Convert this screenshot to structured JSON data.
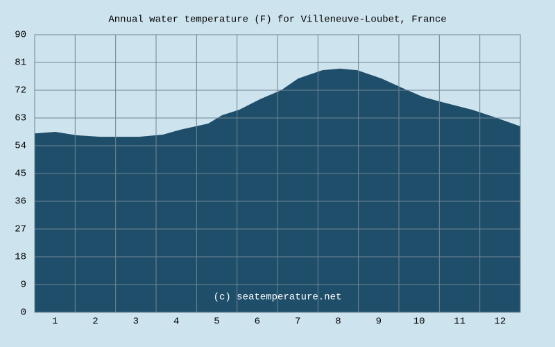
{
  "chart_data": {
    "type": "area",
    "title": "Annual water temperature (F) for Villeneuve-Loubet, France",
    "annotation": "(c) seatemperature.net",
    "x": [
      0.5,
      1.01,
      1.53,
      2.13,
      3.07,
      3.67,
      4.1,
      4.79,
      5.13,
      5.56,
      6.07,
      6.59,
      7.01,
      7.61,
      8.04,
      8.47,
      9.07,
      9.59,
      10.1,
      10.61,
      11.3,
      11.81,
      12.5
    ],
    "values": [
      58.0,
      58.5,
      57.4,
      56.9,
      56.9,
      57.6,
      59.2,
      61.2,
      63.9,
      65.7,
      69.1,
      72.0,
      75.8,
      78.5,
      79.0,
      78.5,
      75.8,
      72.7,
      69.8,
      68.0,
      65.7,
      63.5,
      60.3
    ],
    "color": "#1f4e6a",
    "xlim": [
      0.5,
      12.5
    ],
    "xticks": [
      1,
      2,
      3,
      4,
      5,
      6,
      7,
      8,
      9,
      10,
      11,
      12
    ],
    "ylim": [
      0,
      90
    ],
    "yticks": [
      0,
      9,
      18,
      27,
      36,
      45,
      54,
      63,
      72,
      81,
      90
    ],
    "grid": true
  }
}
